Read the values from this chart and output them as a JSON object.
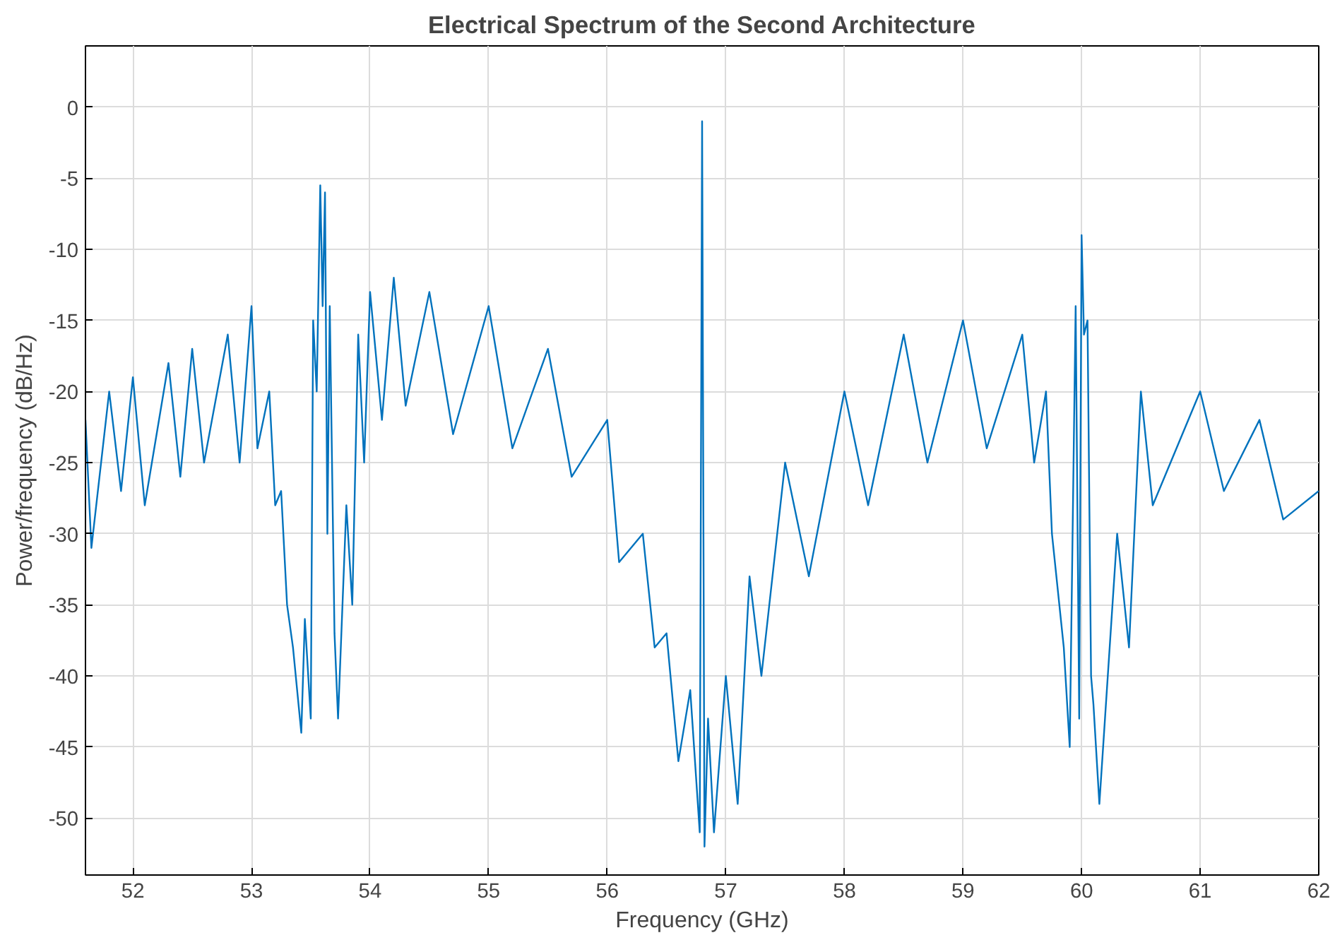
{
  "chart_data": {
    "type": "line",
    "title": "Electrical Spectrum of the Second Architecture",
    "xlabel": "Frequency (GHz)",
    "ylabel": "Power/frequency (dB/Hz)",
    "xlim": [
      51.6,
      62
    ],
    "ylim": [
      -54,
      4.3
    ],
    "xticks": [
      52,
      53,
      54,
      55,
      56,
      57,
      58,
      59,
      60,
      61,
      62
    ],
    "yticks": [
      -50,
      -45,
      -40,
      -35,
      -30,
      -25,
      -20,
      -15,
      -10,
      -5,
      0
    ],
    "grid": true,
    "series": [
      {
        "color": "#0072bd",
        "x": [
          51.6,
          51.65,
          51.8,
          51.9,
          52.0,
          52.1,
          52.3,
          52.4,
          52.5,
          52.6,
          52.8,
          52.9,
          53.0,
          53.05,
          53.15,
          53.2,
          53.25,
          53.3,
          53.35,
          53.42,
          53.45,
          53.5,
          53.52,
          53.55,
          53.58,
          53.6,
          53.62,
          53.64,
          53.66,
          53.7,
          53.73,
          53.8,
          53.85,
          53.9,
          53.95,
          54.0,
          54.1,
          54.2,
          54.3,
          54.5,
          54.7,
          55.0,
          55.2,
          55.5,
          55.7,
          56.0,
          56.1,
          56.3,
          56.4,
          56.5,
          56.6,
          56.7,
          56.78,
          56.8,
          56.82,
          56.85,
          56.9,
          57.0,
          57.1,
          57.2,
          57.3,
          57.5,
          57.7,
          58.0,
          58.2,
          58.5,
          58.7,
          59.0,
          59.2,
          59.5,
          59.6,
          59.7,
          59.75,
          59.85,
          59.9,
          59.95,
          59.98,
          60.0,
          60.02,
          60.05,
          60.08,
          60.1,
          60.15,
          60.3,
          60.4,
          60.5,
          60.6,
          61.0,
          61.2,
          61.5,
          61.7,
          62.0
        ],
        "values": [
          -22,
          -31,
          -20,
          -27,
          -19,
          -28,
          -18,
          -26,
          -17,
          -25,
          -16,
          -25,
          -14,
          -24,
          -20,
          -28,
          -27,
          -35,
          -38,
          -44,
          -36,
          -43,
          -15,
          -20,
          -5.5,
          -14,
          -6,
          -30,
          -14,
          -37,
          -43,
          -28,
          -35,
          -16,
          -25,
          -13,
          -22,
          -12,
          -21,
          -13,
          -23,
          -14,
          -24,
          -17,
          -26,
          -22,
          -32,
          -30,
          -38,
          -37,
          -46,
          -41,
          -51,
          -1,
          -52,
          -43,
          -51,
          -40,
          -49,
          -33,
          -40,
          -25,
          -33,
          -20,
          -28,
          -16,
          -25,
          -15,
          -24,
          -16,
          -25,
          -20,
          -30,
          -38,
          -45,
          -14,
          -43,
          -9,
          -16,
          -15,
          -40,
          -42,
          -49,
          -30,
          -38,
          -20,
          -28,
          -20,
          -27,
          -22,
          -29,
          -27
        ]
      }
    ]
  }
}
